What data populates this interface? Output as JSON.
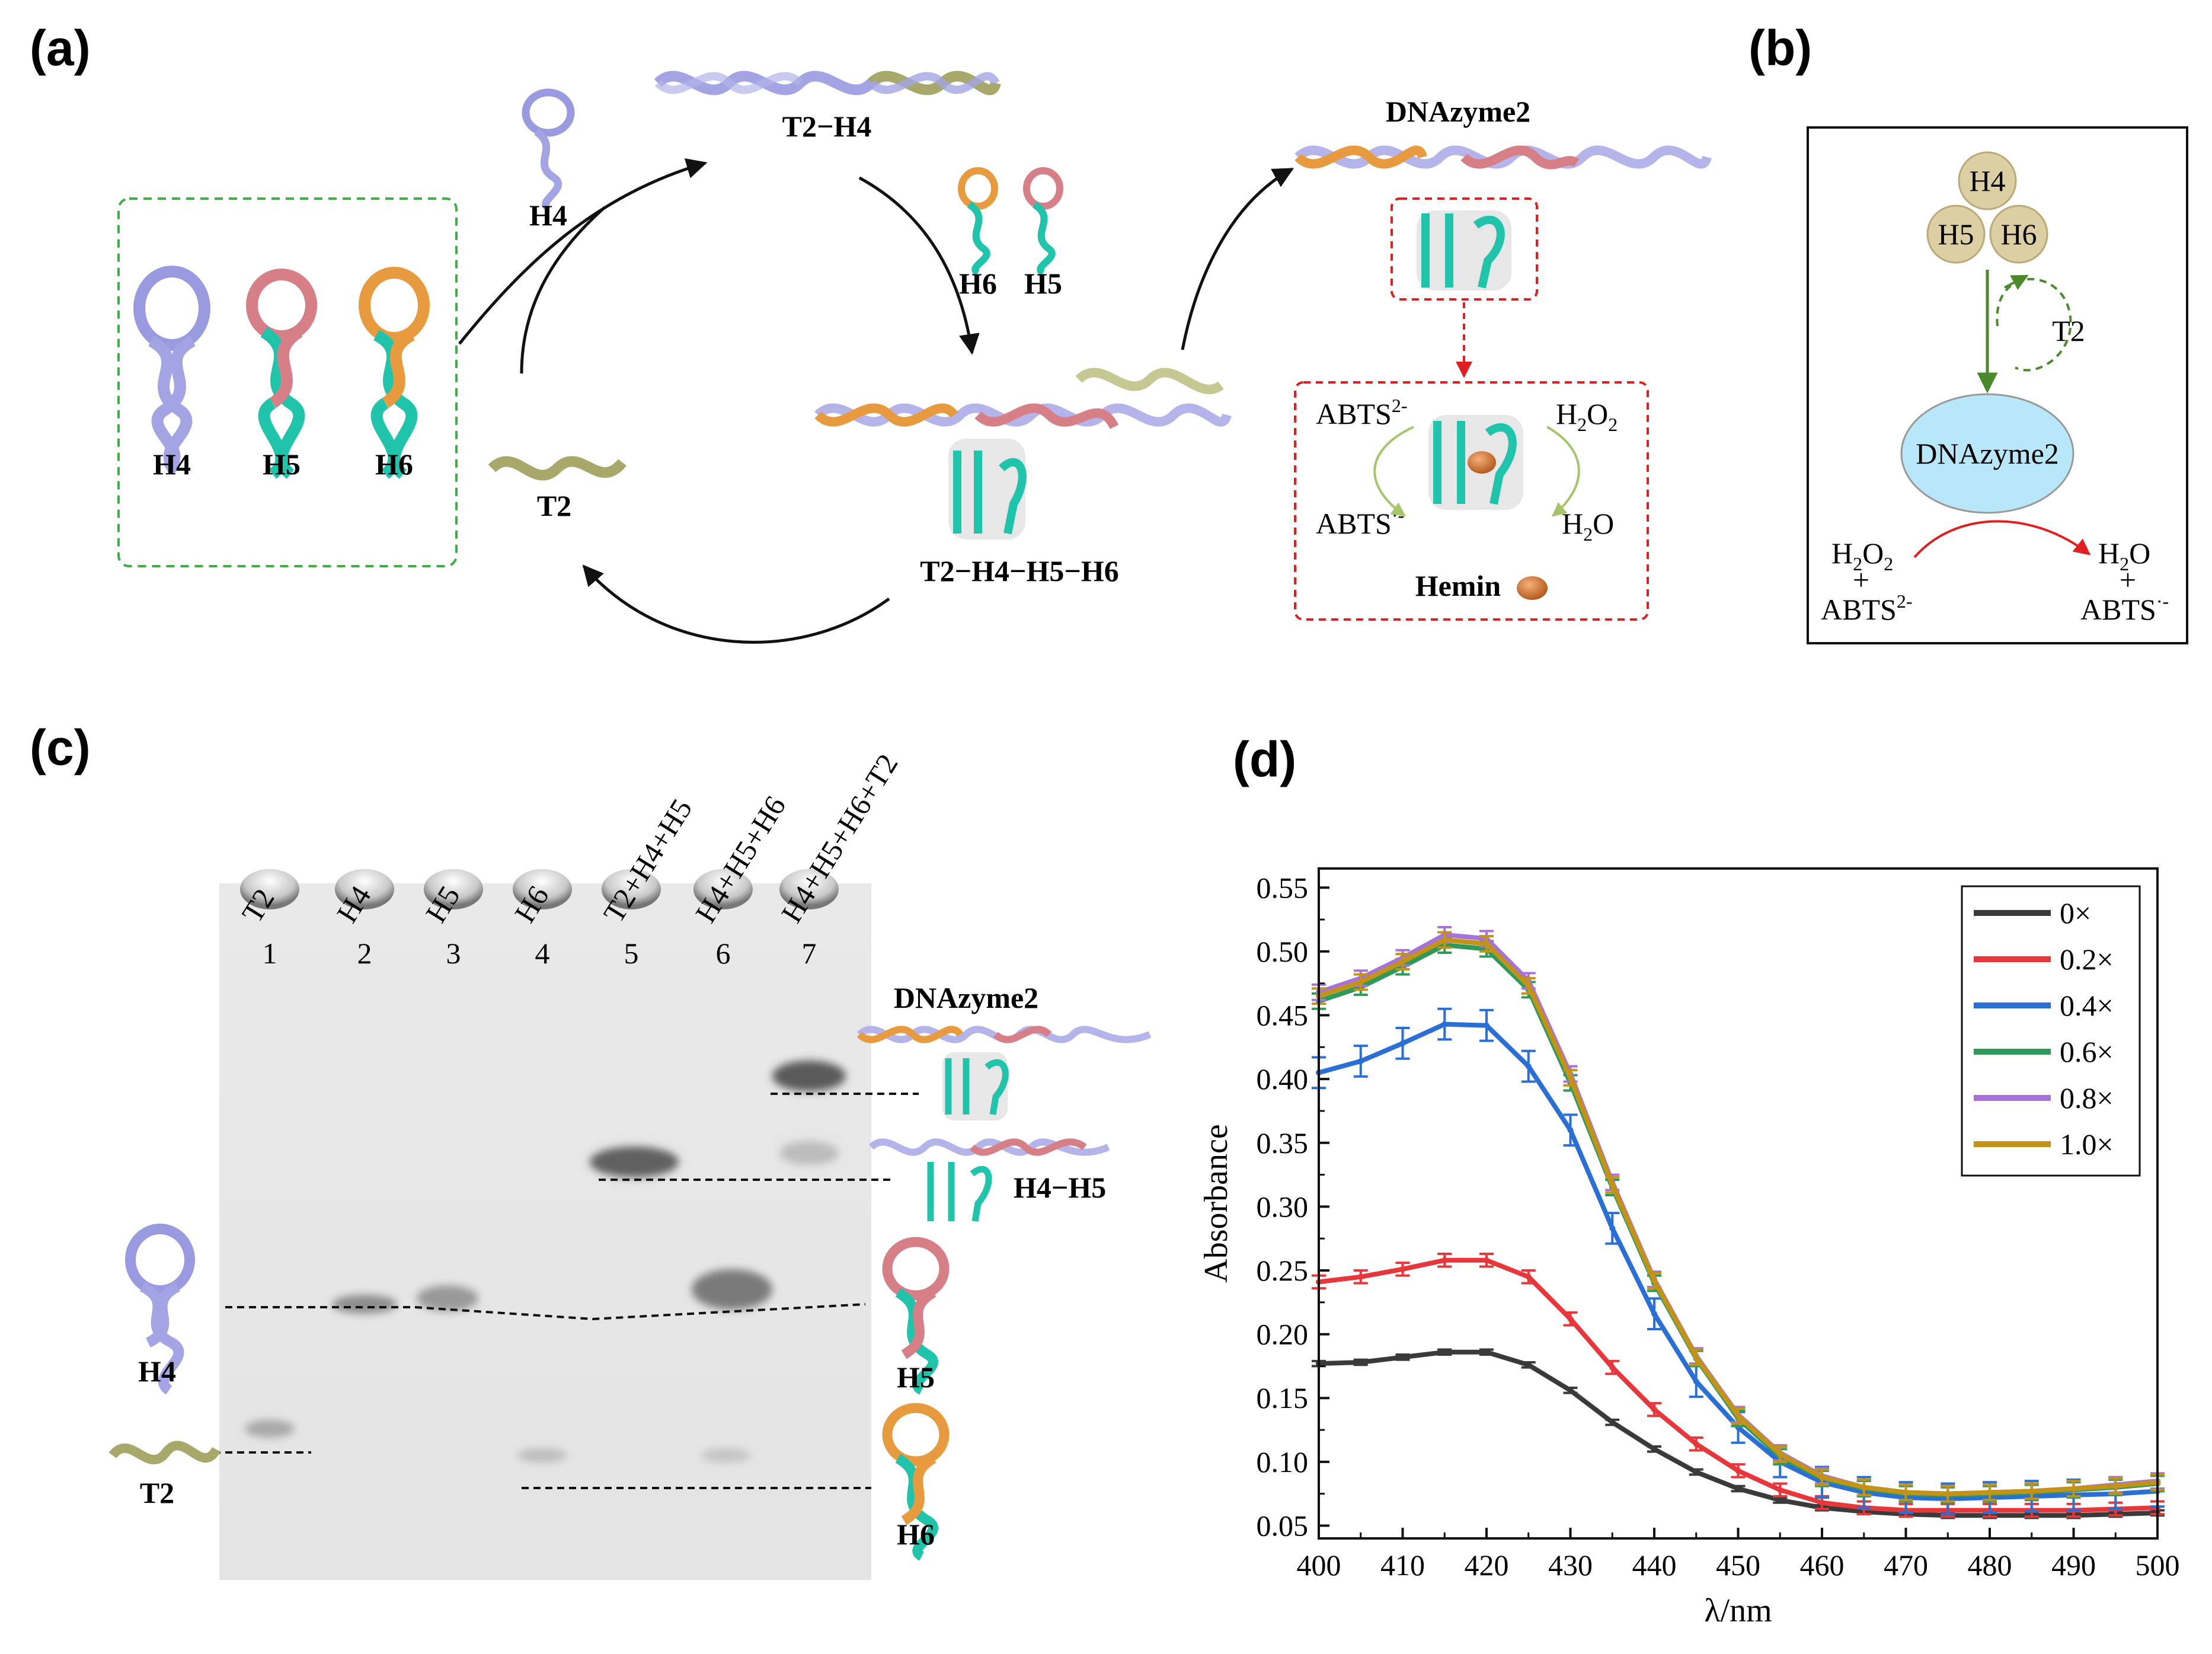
{
  "panels": {
    "a": "(a)",
    "b": "(b)",
    "c": "(c)",
    "d": "(d)"
  },
  "panel_a": {
    "hairpins": [
      "H4",
      "H5",
      "H6"
    ],
    "h4_free": "H4",
    "t2": "T2",
    "t2h4": "T2−H4",
    "h6": "H6",
    "h5": "H5",
    "complex": "T2−H4−H5−H6",
    "dnazyme": "DNAzyme2",
    "abts2": "ABTS",
    "abts2_sup": "2-",
    "abts_rad": "ABTS",
    "abts_rad_sup": "·-",
    "h2o2_h": "H",
    "h2o2_2a": "2",
    "h2o2_o": "O",
    "h2o2_2b": "2",
    "h2o_h": "H",
    "h2o_2": "2",
    "h2o_o": "O",
    "hemin": "Hemin"
  },
  "panel_b": {
    "h4": "H4",
    "h5": "H5",
    "h6": "H6",
    "t2": "T2",
    "dnazyme": "DNAzyme2",
    "h2o2_h": "H",
    "h2o2_2a": "2",
    "h2o2_o": "O",
    "h2o2_2b": "2",
    "plus": "+",
    "abts2": "ABTS",
    "abts2_sup": "2-",
    "h2o_h": "H",
    "h2o_2": "2",
    "h2o_o": "O",
    "abts_rad": "ABTS",
    "abts_rad_sup": "·-"
  },
  "panel_c": {
    "lanes": [
      {
        "name": "T2",
        "num": "1"
      },
      {
        "name": "H4",
        "num": "2"
      },
      {
        "name": "H5",
        "num": "3"
      },
      {
        "name": "H6",
        "num": "4"
      },
      {
        "name": "T2+H4+H5",
        "num": "5"
      },
      {
        "name": "H4+H5+H6",
        "num": "6"
      },
      {
        "name": "H4+H5+H6+T2",
        "num": "7"
      }
    ],
    "dnazyme": "DNAzyme2",
    "h4h5": "H4−H5",
    "h4": "H4",
    "t2": "T2",
    "h5": "H5",
    "h6": "H6"
  },
  "chart_data": {
    "type": "line",
    "title": "",
    "xlabel": "λ/nm",
    "ylabel": "Absorbance",
    "xlim": [
      400,
      500
    ],
    "ylim": [
      0.04,
      0.565
    ],
    "xticks": [
      "400",
      "410",
      "420",
      "430",
      "440",
      "450",
      "460",
      "470",
      "480",
      "490",
      "500"
    ],
    "yticks": [
      "0.05",
      "0.10",
      "0.15",
      "0.20",
      "0.25",
      "0.30",
      "0.35",
      "0.40",
      "0.45",
      "0.50",
      "0.55"
    ],
    "legend_position": "top-right",
    "x": [
      400,
      405,
      410,
      415,
      420,
      425,
      430,
      435,
      440,
      445,
      450,
      455,
      460,
      465,
      470,
      475,
      480,
      485,
      490,
      495,
      500
    ],
    "series": [
      {
        "name": "0×",
        "color": "#3a3a3a",
        "values": [
          0.177,
          0.178,
          0.182,
          0.186,
          0.186,
          0.176,
          0.156,
          0.131,
          0.11,
          0.092,
          0.079,
          0.07,
          0.064,
          0.061,
          0.059,
          0.058,
          0.058,
          0.058,
          0.058,
          0.059,
          0.06
        ]
      },
      {
        "name": "0.2×",
        "color": "#e8373a",
        "values": [
          0.241,
          0.245,
          0.251,
          0.258,
          0.258,
          0.245,
          0.212,
          0.174,
          0.141,
          0.114,
          0.093,
          0.078,
          0.068,
          0.064,
          0.062,
          0.062,
          0.062,
          0.062,
          0.062,
          0.063,
          0.064
        ]
      },
      {
        "name": "0.4×",
        "color": "#2a6fd6",
        "values": [
          0.405,
          0.414,
          0.428,
          0.443,
          0.442,
          0.41,
          0.36,
          0.283,
          0.216,
          0.163,
          0.127,
          0.1,
          0.084,
          0.076,
          0.072,
          0.071,
          0.072,
          0.073,
          0.074,
          0.075,
          0.077
        ]
      },
      {
        "name": "0.6×",
        "color": "#2e9a5a",
        "values": [
          0.461,
          0.472,
          0.488,
          0.505,
          0.502,
          0.47,
          0.397,
          0.315,
          0.24,
          0.181,
          0.134,
          0.104,
          0.087,
          0.079,
          0.075,
          0.074,
          0.075,
          0.076,
          0.078,
          0.08,
          0.083
        ]
      },
      {
        "name": "0.8×",
        "color": "#a873d8",
        "values": [
          0.468,
          0.479,
          0.495,
          0.513,
          0.51,
          0.477,
          0.404,
          0.319,
          0.243,
          0.183,
          0.137,
          0.107,
          0.089,
          0.08,
          0.076,
          0.075,
          0.076,
          0.077,
          0.079,
          0.082,
          0.085
        ]
      },
      {
        "name": "1.0×",
        "color": "#c29317",
        "values": [
          0.465,
          0.476,
          0.492,
          0.509,
          0.506,
          0.473,
          0.401,
          0.317,
          0.242,
          0.182,
          0.136,
          0.106,
          0.088,
          0.08,
          0.076,
          0.075,
          0.076,
          0.077,
          0.079,
          0.081,
          0.084
        ]
      }
    ],
    "error_bars": [
      0.002,
      0.005,
      0.012,
      0.006,
      0.006,
      0.006
    ]
  }
}
